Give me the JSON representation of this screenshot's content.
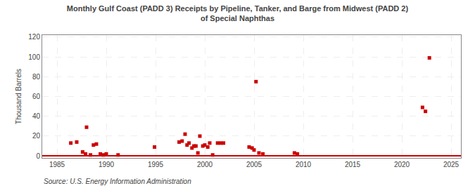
{
  "chart_data": {
    "type": "scatter",
    "title": "Monthly Gulf Coast (PADD 3) Receipts by Pipeline, Tanker, and Barge from Midwest (PADD 2)\nof Special Naphthas",
    "ylabel": "Thousand Barrels",
    "annotations": [
      "Source: U.S. Energy Information Administration"
    ],
    "x": [
      1986.4,
      1987.0,
      1987.6,
      1987.9,
      1988.0,
      1988.4,
      1988.7,
      1989.0,
      1989.4,
      1989.7,
      1990.0,
      1991.2,
      1994.9,
      1997.4,
      1997.7,
      1998.0,
      1998.2,
      1998.4,
      1998.7,
      1998.9,
      1999.1,
      1999.3,
      1999.5,
      1999.8,
      2000.0,
      2000.3,
      2000.5,
      2000.8,
      2001.3,
      2001.6,
      2001.9,
      2004.5,
      2004.8,
      2005.0,
      2005.2,
      2005.5,
      2005.9,
      2009.1,
      2009.4,
      2022.1,
      2022.4,
      2022.8
    ],
    "values": [
      13,
      14,
      4,
      2,
      29,
      1,
      11,
      12,
      2,
      1,
      2,
      1,
      9,
      14,
      15,
      22,
      11,
      13,
      8,
      10,
      10,
      3,
      20,
      10,
      11,
      9,
      13,
      1,
      13,
      13,
      13,
      9,
      8,
      6,
      75,
      3,
      2,
      3,
      2,
      49,
      45,
      99
    ],
    "color": "#cc0000",
    "marker": "square",
    "xlim": [
      1983.5,
      2026
    ],
    "xticks": [
      1985,
      1990,
      1995,
      2000,
      2005,
      2010,
      2015,
      2020,
      2025
    ],
    "ylim": [
      -2,
      122
    ],
    "yticks": [
      0,
      20,
      40,
      60,
      80,
      100,
      120
    ],
    "grid": true
  }
}
